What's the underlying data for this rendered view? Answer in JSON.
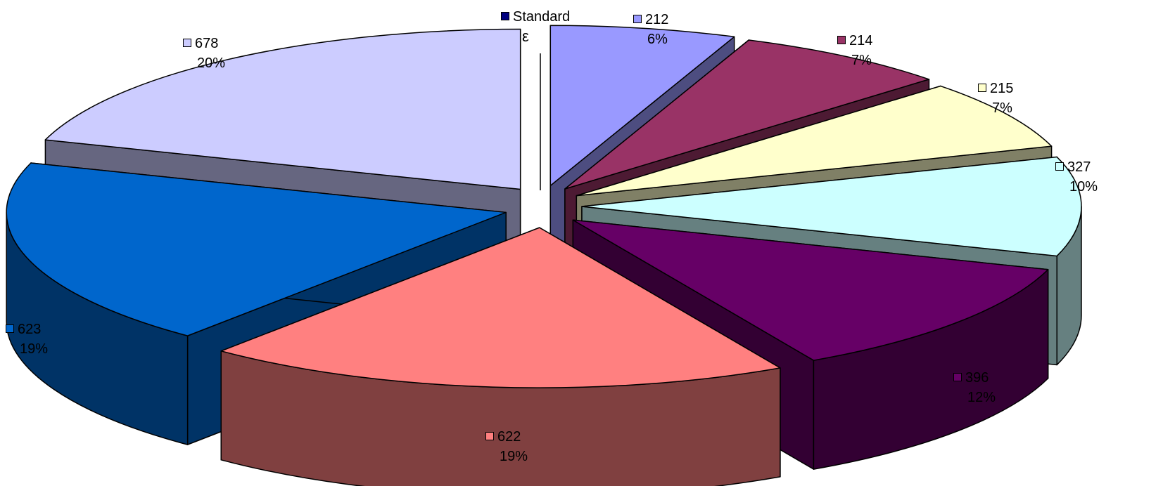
{
  "chart_data": {
    "type": "pie",
    "exploded_3d": true,
    "slices": [
      {
        "label": "Standard",
        "sublabel": "ε",
        "value": 0,
        "percent": "",
        "color": "#000080"
      },
      {
        "label": "212",
        "value": 6,
        "percent": "6%",
        "color": "#9999ff"
      },
      {
        "label": "214",
        "value": 7,
        "percent": "7%",
        "color": "#993366"
      },
      {
        "label": "215",
        "value": 7,
        "percent": "7%",
        "color": "#ffffcc"
      },
      {
        "label": "327",
        "value": 10,
        "percent": "10%",
        "color": "#ccffff"
      },
      {
        "label": "396",
        "value": 12,
        "percent": "12%",
        "color": "#660066"
      },
      {
        "label": "622",
        "value": 19,
        "percent": "19%",
        "color": "#ff8080"
      },
      {
        "label": "623",
        "value": 19,
        "percent": "19%",
        "color": "#0066cc"
      },
      {
        "label": "678",
        "value": 20,
        "percent": "20%",
        "color": "#ccccff"
      }
    ]
  }
}
